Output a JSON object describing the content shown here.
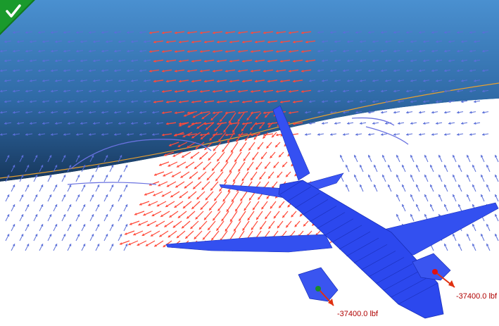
{
  "viewport": {
    "status_icon": "checkmark-icon",
    "colors": {
      "sky_top": "#3f86c8",
      "sky_bottom": "#1d3f66",
      "ground": "#ffffff",
      "vector_blue": "#5a6fd8",
      "vector_red": "#ff4a3a",
      "mesh_blue": "#2a45f0",
      "mesh_line": "#1a2fb8",
      "force_arrow": "#e03010",
      "status_green": "#0f7a1e"
    },
    "loads": [
      {
        "label": "-37400.0 lbf",
        "marker_color": "#1a8a2a"
      },
      {
        "label": "-37400.0 lbf",
        "marker_color": "#e01010"
      }
    ]
  }
}
